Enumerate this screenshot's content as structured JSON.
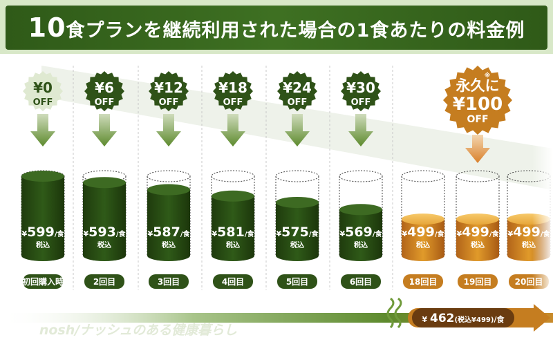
{
  "header": {
    "title_num": "10",
    "title_text": "食プランを継続利用された場合の1食あたりの料金例"
  },
  "chart_data": {
    "type": "bar",
    "title": "10食プランを継続利用された場合の1食あたりの料金例",
    "categories": [
      "初回購入時",
      "2回目",
      "3回目",
      "4回目",
      "5回目",
      "6回目",
      "18回目",
      "19回目",
      "20回目"
    ],
    "values": [
      599,
      593,
      587,
      581,
      575,
      569,
      499,
      499,
      499
    ],
    "discounts": [
      "¥0",
      "¥6",
      "¥12",
      "¥18",
      "¥24",
      "¥30",
      "¥100"
    ],
    "value_unit": "/食",
    "tax_label": "税込",
    "off_label": "OFF",
    "special_label": "永久に",
    "asterisk": "※",
    "footer_price": "462",
    "footer_note": "(税込¥499)",
    "footer_unit": "/食",
    "watermark": "nosh/ナッシュのある健康暮らし",
    "colors": {
      "green": "#2f5218",
      "green_fill": "#3d6a22",
      "gold": "#c57d20",
      "gold_light": "#f0b030",
      "arrow": "#6f9a3a",
      "badge_pale": "#dfe9d1"
    }
  }
}
